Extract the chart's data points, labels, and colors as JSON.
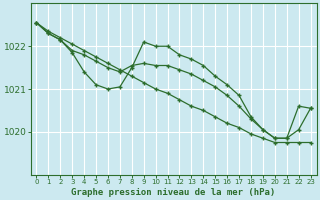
{
  "bg_color": "#cce9f0",
  "grid_color": "#ffffff",
  "line_color": "#2d6e2d",
  "marker": "+",
  "title": "Graphe pression niveau de la mer (hPa)",
  "ylabel_ticks": [
    1020,
    1021,
    1022
  ],
  "xlim": [
    -0.5,
    23.5
  ],
  "ylim": [
    1019.4,
    1022.75
  ],
  "series": [
    {
      "x": [
        0,
        1,
        2,
        3,
        4,
        5,
        6,
        7,
        8,
        9,
        10,
        11,
        12,
        13,
        14,
        15,
        16,
        17,
        18,
        19,
        20,
        21,
        22,
        23
      ],
      "y": [
        1022.55,
        1022.35,
        1022.2,
        1022.05,
        1021.9,
        1021.75,
        1021.6,
        1021.45,
        1021.3,
        1021.15,
        1021.0,
        1020.9,
        1020.75,
        1020.6,
        1020.5,
        1020.35,
        1020.2,
        1020.1,
        1019.95,
        1019.85,
        1019.75,
        1019.75,
        1019.75,
        1019.75
      ]
    },
    {
      "x": [
        0,
        1,
        2,
        3,
        4,
        5,
        6,
        7,
        8,
        9,
        10,
        11,
        12,
        13,
        14,
        15,
        16,
        17,
        18,
        19,
        20,
        21,
        22,
        23
      ],
      "y": [
        1022.55,
        1022.3,
        1022.15,
        1021.85,
        1021.4,
        1021.1,
        1021.0,
        1021.05,
        1021.5,
        1022.1,
        1022.0,
        1022.0,
        1021.8,
        1021.7,
        1021.55,
        1021.3,
        1021.1,
        1020.85,
        1020.35,
        1020.05,
        1019.85,
        1019.85,
        1020.05,
        1020.55
      ]
    },
    {
      "x": [
        0,
        1,
        2,
        3,
        4,
        5,
        6,
        7,
        8,
        9,
        10,
        11,
        12,
        13,
        14,
        15,
        16,
        17,
        18,
        19,
        20,
        21,
        22,
        23
      ],
      "y": [
        1022.55,
        1022.3,
        1022.15,
        1021.9,
        1021.8,
        1021.65,
        1021.5,
        1021.4,
        1021.55,
        1021.6,
        1021.55,
        1021.55,
        1021.45,
        1021.35,
        1021.2,
        1021.05,
        1020.85,
        1020.6,
        1020.3,
        1020.05,
        1019.85,
        1019.85,
        1020.6,
        1020.55
      ]
    }
  ]
}
